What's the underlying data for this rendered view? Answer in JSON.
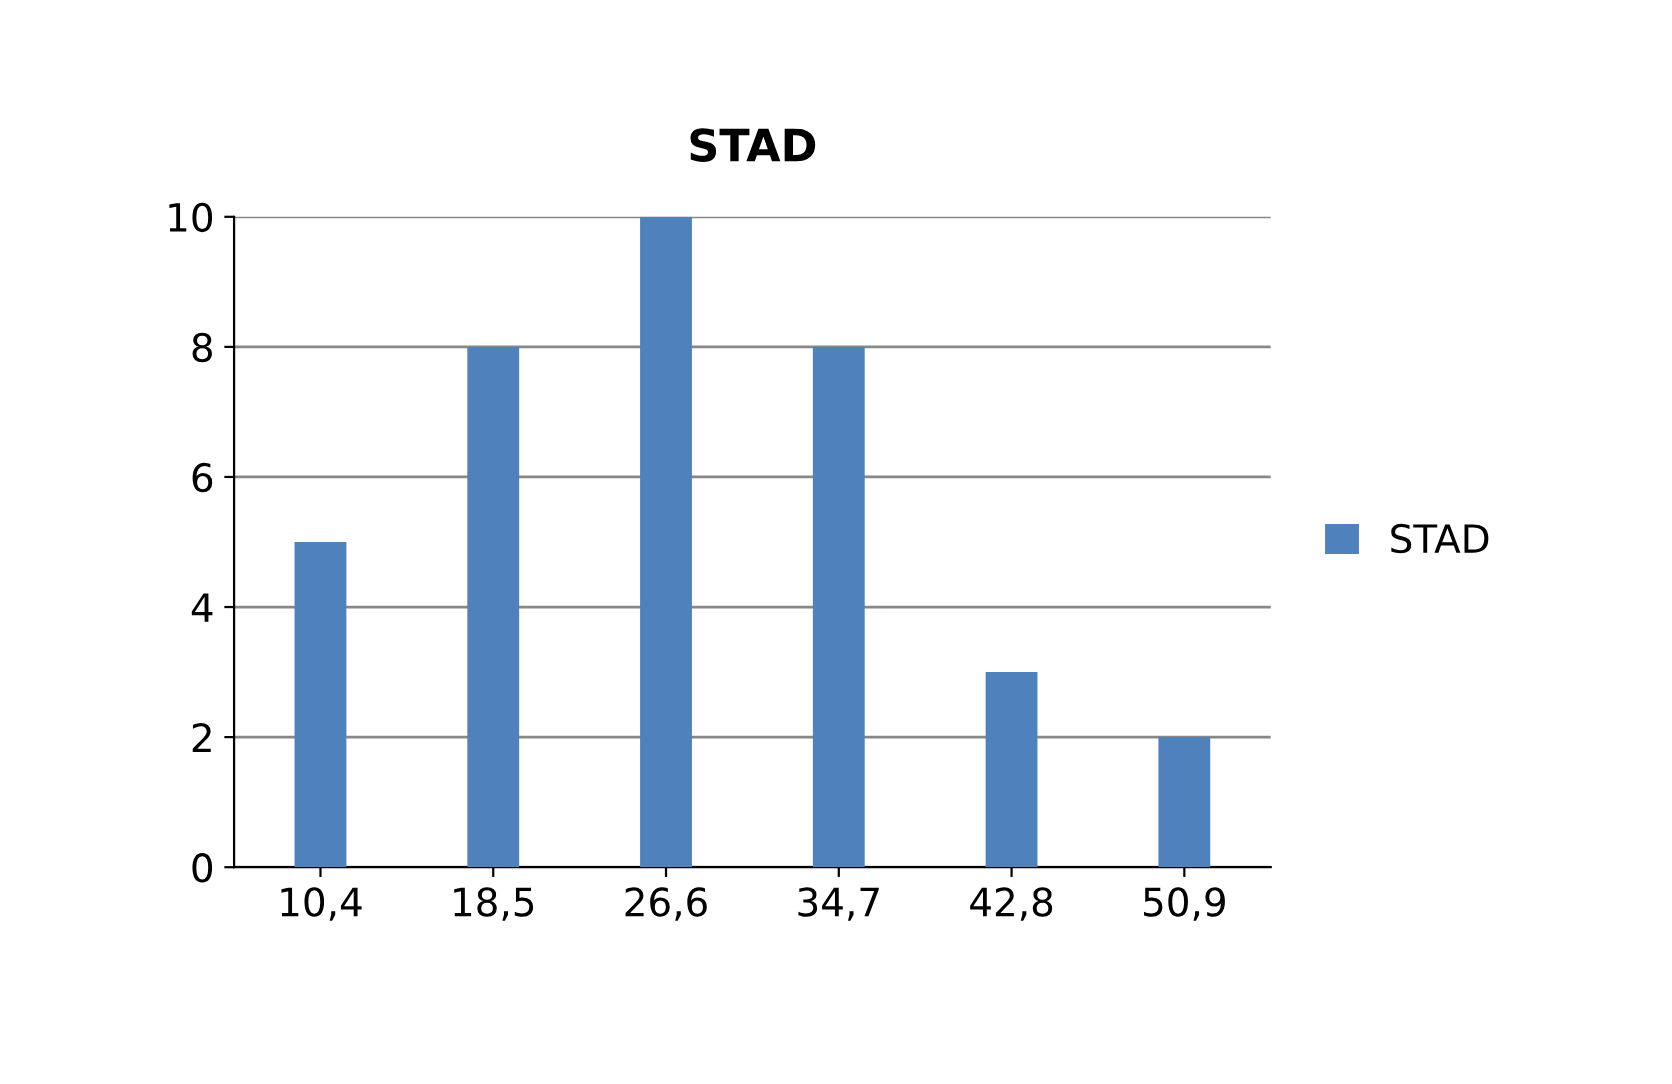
{
  "chart_data": {
    "type": "bar",
    "title": "STAD",
    "categories": [
      "10,4",
      "18,5",
      "26,6",
      "34,7",
      "42,8",
      "50,9"
    ],
    "series": [
      {
        "name": "STAD",
        "color": "#4f81bd",
        "values": [
          5,
          8,
          10,
          8,
          3,
          2
        ]
      }
    ],
    "ylim": [
      0,
      10
    ],
    "yticks": [
      0,
      2,
      4,
      6,
      8,
      10
    ],
    "grid": "y",
    "legend": "right"
  }
}
